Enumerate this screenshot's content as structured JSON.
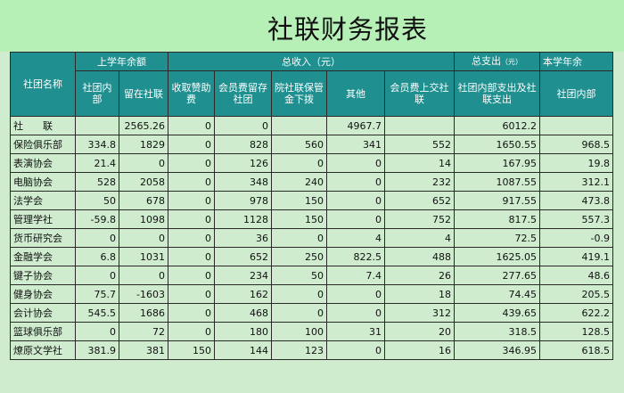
{
  "title": "社联财务报表",
  "header": {
    "club_name": "社团名称",
    "group_last_year": "上学年余额",
    "group_income": "总收入（元）",
    "group_expense": "总支出",
    "group_expense_unit": "（元）",
    "group_this_year": "本学年余",
    "sub": [
      "社团内部",
      "留在社联",
      "收取赞助费",
      "会员费留存社团",
      "院社联保管金下拨",
      "其他",
      "会员费上交社联",
      "社团内部支出及社联支出",
      "社团内部"
    ]
  },
  "rows": [
    [
      "社　　联",
      "",
      "2565.26",
      "0",
      "0",
      "",
      "4967.7",
      "",
      "6012.2",
      ""
    ],
    [
      "保险俱乐部",
      "334.8",
      "1829",
      "0",
      "828",
      "560",
      "341",
      "552",
      "1650.55",
      "968.5"
    ],
    [
      "表演协会",
      "21.4",
      "0",
      "0",
      "126",
      "0",
      "0",
      "14",
      "167.95",
      "19.8"
    ],
    [
      "电脑协会",
      "528",
      "2058",
      "0",
      "348",
      "240",
      "0",
      "232",
      "1087.55",
      "312.1"
    ],
    [
      "法学会",
      "50",
      "678",
      "0",
      "978",
      "150",
      "0",
      "652",
      "917.55",
      "473.8"
    ],
    [
      "管理学社",
      "-59.8",
      "1098",
      "0",
      "1128",
      "150",
      "0",
      "752",
      "817.5",
      "557.3"
    ],
    [
      "货币研究会",
      "0",
      "0",
      "0",
      "36",
      "0",
      "4",
      "4",
      "72.5",
      "-0.9"
    ],
    [
      "金融学会",
      "6.8",
      "1031",
      "0",
      "652",
      "250",
      "822.5",
      "488",
      "1625.05",
      "419.1"
    ],
    [
      "键子协会",
      "0",
      "0",
      "0",
      "234",
      "50",
      "7.4",
      "26",
      "277.65",
      "48.6"
    ],
    [
      "健身协会",
      "75.7",
      "-1603",
      "0",
      "162",
      "0",
      "0",
      "18",
      "74.45",
      "205.5"
    ],
    [
      "会计协会",
      "545.5",
      "1686",
      "0",
      "468",
      "0",
      "0",
      "312",
      "439.65",
      "622.2"
    ],
    [
      "篮球俱乐部",
      "0",
      "72",
      "0",
      "180",
      "100",
      "31",
      "20",
      "318.5",
      "128.5"
    ],
    [
      "燎原文学社",
      "381.9",
      "381",
      "150",
      "144",
      "123",
      "0",
      "16",
      "346.95",
      "618.5"
    ]
  ]
}
